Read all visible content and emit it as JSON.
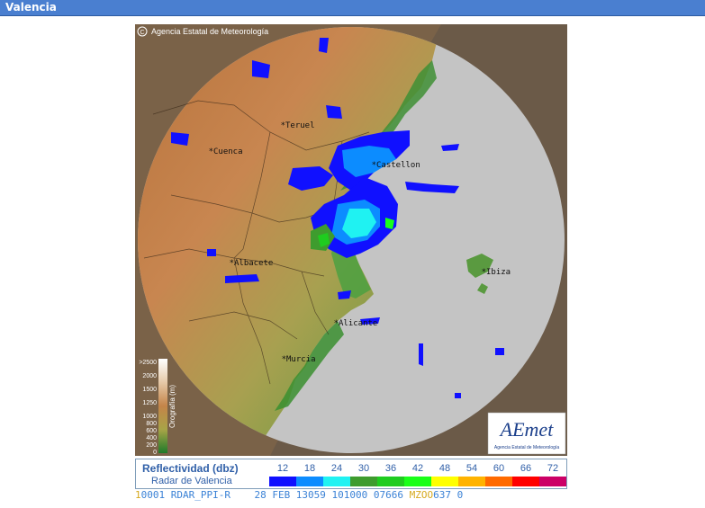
{
  "window": {
    "title": "Valencia"
  },
  "map": {
    "credit": "Agencia Estatal de Meteorología",
    "cities": [
      {
        "id": "teruel",
        "label": "Teruel"
      },
      {
        "id": "cuenca",
        "label": "Cuenca"
      },
      {
        "id": "castellon",
        "label": "Castellon"
      },
      {
        "id": "albacete",
        "label": "Albacete"
      },
      {
        "id": "ibiza",
        "label": "Ibiza"
      },
      {
        "id": "alicante",
        "label": "Alicante"
      },
      {
        "id": "murcia",
        "label": "Murcia"
      }
    ],
    "elevation_scale": {
      "title": "Orografía (m)",
      "ticks": [
        ">2500",
        "2000",
        "1500",
        "1250",
        "1000",
        "800",
        "600",
        "400",
        "200",
        "0"
      ]
    },
    "logo": {
      "text": "AEmet",
      "subtitle": "Agencia Estatal de Meteorología"
    }
  },
  "legend": {
    "title": "Reflectividad (dbz)",
    "subtitle": "Radar de Valencia",
    "levels": [
      {
        "value": "12",
        "color": "#1010ff"
      },
      {
        "value": "18",
        "color": "#0c8cff"
      },
      {
        "value": "24",
        "color": "#1ff2f2"
      },
      {
        "value": "30",
        "color": "#3e9c2e"
      },
      {
        "value": "36",
        "color": "#1fcc1f"
      },
      {
        "value": "42",
        "color": "#19ff19"
      },
      {
        "value": "48",
        "color": "#ffff00"
      },
      {
        "value": "54",
        "color": "#ffb300"
      },
      {
        "value": "60",
        "color": "#ff6a00"
      },
      {
        "value": "66",
        "color": "#ff0000"
      },
      {
        "value": "72",
        "color": "#cc0066"
      }
    ]
  },
  "status": {
    "lead": "1",
    "main": "0001 RDAR_PPI-R    28 FEB 13059 101000 07666 ",
    "highlight": "MZOO",
    "tail": "637 0"
  }
}
